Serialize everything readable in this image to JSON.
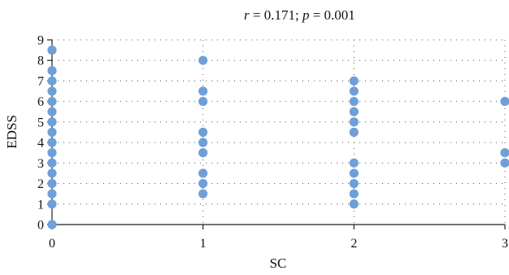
{
  "chart_data": {
    "type": "scatter",
    "title": "",
    "annotation": {
      "r_symbol": "r",
      "r_text": " = 0.171; ",
      "p_symbol": "p",
      "p_text": " = 0.001"
    },
    "xlabel": "SC",
    "ylabel": "EDSS",
    "xlim": [
      0,
      3
    ],
    "ylim": [
      0,
      9
    ],
    "xticks": [
      0,
      1,
      2,
      3
    ],
    "yticks": [
      0,
      1,
      2,
      3,
      4,
      5,
      6,
      7,
      8,
      9
    ],
    "grid": "dotted",
    "legend": "none",
    "marker_color": "#6f9fd8",
    "series": [
      {
        "points": [
          [
            0,
            0
          ],
          [
            0,
            1
          ],
          [
            0,
            1.5
          ],
          [
            0,
            2
          ],
          [
            0,
            2.5
          ],
          [
            0,
            3
          ],
          [
            0,
            3.5
          ],
          [
            0,
            4
          ],
          [
            0,
            4.5
          ],
          [
            0,
            5
          ],
          [
            0,
            5.5
          ],
          [
            0,
            6
          ],
          [
            0,
            6.5
          ],
          [
            0,
            7
          ],
          [
            0,
            7.5
          ],
          [
            0,
            8.5
          ],
          [
            1,
            1.5
          ],
          [
            1,
            2
          ],
          [
            1,
            2.5
          ],
          [
            1,
            3.5
          ],
          [
            1,
            4
          ],
          [
            1,
            4.5
          ],
          [
            1,
            6
          ],
          [
            1,
            6.5
          ],
          [
            1,
            8
          ],
          [
            2,
            1
          ],
          [
            2,
            1.5
          ],
          [
            2,
            2
          ],
          [
            2,
            2.5
          ],
          [
            2,
            3
          ],
          [
            2,
            4.5
          ],
          [
            2,
            5
          ],
          [
            2,
            5.5
          ],
          [
            2,
            6
          ],
          [
            2,
            6.5
          ],
          [
            2,
            7
          ],
          [
            3,
            3
          ],
          [
            3,
            3.5
          ],
          [
            3,
            6
          ]
        ]
      }
    ]
  }
}
